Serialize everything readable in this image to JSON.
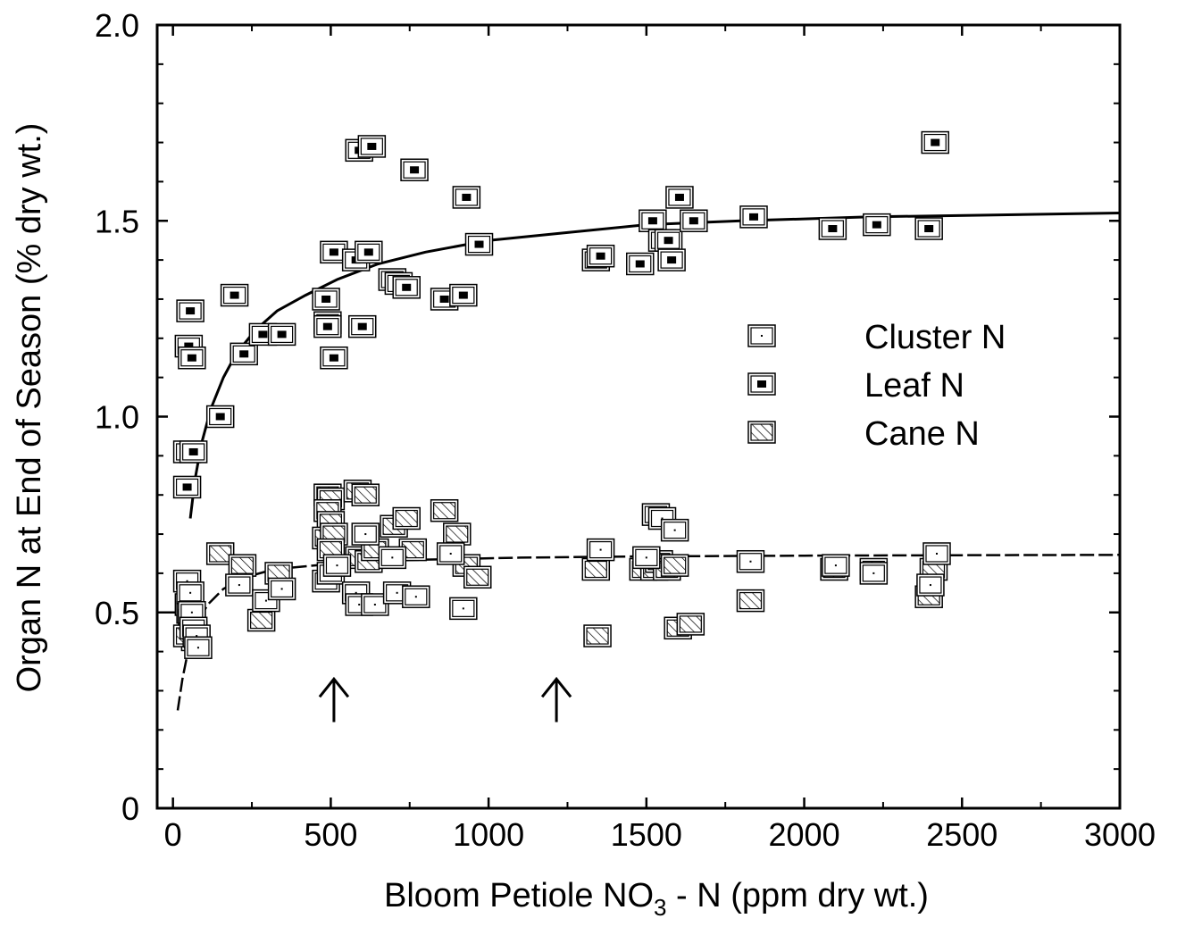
{
  "chart_data": {
    "type": "scatter",
    "title": "",
    "xlabel": "Bloom Petiole NO",
    "xlabel_sub": "3",
    "xlabel_rest": " - N (ppm dry wt.)",
    "ylabel": "Organ N at End of Season (% dry wt.)",
    "xlim": [
      -50,
      3000
    ],
    "ylim": [
      0,
      2.0
    ],
    "x_ticks": [
      0,
      500,
      1000,
      1500,
      2000,
      2500,
      3000
    ],
    "x_tick_labels": [
      "0",
      "500",
      "1000",
      "1500",
      "2000",
      "2500",
      "3000"
    ],
    "y_ticks": [
      0,
      0.5,
      1.0,
      1.5,
      2.0
    ],
    "y_tick_labels": [
      "0",
      "0.5",
      "1.0",
      "1.5",
      "2.0"
    ],
    "legend_position": "right-middle",
    "legend": [
      {
        "label": "Cluster N",
        "marker": "open-square-dot"
      },
      {
        "label": "Leaf N",
        "marker": "filled-center-square"
      },
      {
        "label": "Cane N",
        "marker": "hatched-square"
      }
    ],
    "series": [
      {
        "name": "Leaf N",
        "marker": "filled-center-square",
        "points": [
          [
            55,
            1.27
          ],
          [
            50,
            1.18
          ],
          [
            60,
            1.15
          ],
          [
            45,
            0.91
          ],
          [
            65,
            0.91
          ],
          [
            45,
            0.82
          ],
          [
            150,
            1.0
          ],
          [
            195,
            1.31
          ],
          [
            225,
            1.16
          ],
          [
            285,
            1.21
          ],
          [
            345,
            1.21
          ],
          [
            485,
            1.3
          ],
          [
            490,
            1.24
          ],
          [
            490,
            1.23
          ],
          [
            510,
            1.15
          ],
          [
            510,
            1.42
          ],
          [
            580,
            1.4
          ],
          [
            590,
            1.68
          ],
          [
            630,
            1.69
          ],
          [
            620,
            1.42
          ],
          [
            600,
            1.23
          ],
          [
            695,
            1.35
          ],
          [
            715,
            1.34
          ],
          [
            740,
            1.33
          ],
          [
            765,
            1.63
          ],
          [
            860,
            1.3
          ],
          [
            920,
            1.31
          ],
          [
            930,
            1.56
          ],
          [
            970,
            1.44
          ],
          [
            1340,
            1.4
          ],
          [
            1355,
            1.41
          ],
          [
            1480,
            1.39
          ],
          [
            1520,
            1.5
          ],
          [
            1550,
            1.45
          ],
          [
            1570,
            1.45
          ],
          [
            1580,
            1.4
          ],
          [
            1605,
            1.56
          ],
          [
            1650,
            1.5
          ],
          [
            1840,
            1.51
          ],
          [
            2090,
            1.48
          ],
          [
            2230,
            1.49
          ],
          [
            2395,
            1.48
          ],
          [
            2415,
            1.7
          ]
        ]
      },
      {
        "name": "Cluster N",
        "marker": "open-square-dot",
        "points": [
          [
            45,
            0.58
          ],
          [
            55,
            0.55
          ],
          [
            60,
            0.5
          ],
          [
            65,
            0.46
          ],
          [
            75,
            0.44
          ],
          [
            80,
            0.41
          ],
          [
            210,
            0.57
          ],
          [
            295,
            0.53
          ],
          [
            345,
            0.56
          ],
          [
            485,
            0.58
          ],
          [
            500,
            0.6
          ],
          [
            520,
            0.62
          ],
          [
            580,
            0.55
          ],
          [
            590,
            0.52
          ],
          [
            610,
            0.7
          ],
          [
            640,
            0.52
          ],
          [
            695,
            0.64
          ],
          [
            710,
            0.55
          ],
          [
            770,
            0.54
          ],
          [
            880,
            0.65
          ],
          [
            920,
            0.51
          ],
          [
            1355,
            0.66
          ],
          [
            1500,
            0.64
          ],
          [
            1530,
            0.75
          ],
          [
            1550,
            0.74
          ],
          [
            1590,
            0.71
          ],
          [
            1830,
            0.63
          ],
          [
            2100,
            0.62
          ],
          [
            2220,
            0.6
          ],
          [
            2400,
            0.57
          ],
          [
            2420,
            0.65
          ]
        ]
      },
      {
        "name": "Cane N",
        "marker": "hatched-square",
        "points": [
          [
            50,
            0.52
          ],
          [
            55,
            0.5
          ],
          [
            60,
            0.48
          ],
          [
            65,
            0.45
          ],
          [
            70,
            0.43
          ],
          [
            45,
            0.44
          ],
          [
            150,
            0.65
          ],
          [
            220,
            0.62
          ],
          [
            280,
            0.48
          ],
          [
            335,
            0.6
          ],
          [
            490,
            0.8
          ],
          [
            500,
            0.79
          ],
          [
            490,
            0.76
          ],
          [
            500,
            0.73
          ],
          [
            485,
            0.69
          ],
          [
            510,
            0.7
          ],
          [
            500,
            0.66
          ],
          [
            585,
            0.81
          ],
          [
            610,
            0.8
          ],
          [
            590,
            0.64
          ],
          [
            620,
            0.63
          ],
          [
            640,
            0.66
          ],
          [
            700,
            0.72
          ],
          [
            740,
            0.74
          ],
          [
            760,
            0.66
          ],
          [
            860,
            0.76
          ],
          [
            900,
            0.7
          ],
          [
            930,
            0.62
          ],
          [
            965,
            0.59
          ],
          [
            1340,
            0.61
          ],
          [
            1345,
            0.44
          ],
          [
            1490,
            0.61
          ],
          [
            1525,
            0.61
          ],
          [
            1540,
            0.63
          ],
          [
            1565,
            0.61
          ],
          [
            1590,
            0.62
          ],
          [
            1600,
            0.46
          ],
          [
            1640,
            0.47
          ],
          [
            1830,
            0.53
          ],
          [
            2095,
            0.61
          ],
          [
            2220,
            0.61
          ],
          [
            2395,
            0.54
          ],
          [
            2410,
            0.61
          ]
        ]
      }
    ],
    "fit_lines": [
      {
        "name": "Leaf N fit",
        "style": "solid",
        "points": [
          [
            55,
            0.74
          ],
          [
            70,
            0.84
          ],
          [
            90,
            0.93
          ],
          [
            120,
            1.02
          ],
          [
            160,
            1.1
          ],
          [
            200,
            1.16
          ],
          [
            260,
            1.22
          ],
          [
            330,
            1.27
          ],
          [
            420,
            1.31
          ],
          [
            520,
            1.35
          ],
          [
            650,
            1.39
          ],
          [
            800,
            1.42
          ],
          [
            1000,
            1.45
          ],
          [
            1250,
            1.47
          ],
          [
            1500,
            1.49
          ],
          [
            1800,
            1.5
          ],
          [
            2200,
            1.51
          ],
          [
            2600,
            1.515
          ],
          [
            3000,
            1.52
          ]
        ]
      },
      {
        "name": "Cluster/Cane N fit",
        "style": "dashed",
        "points": [
          [
            15,
            0.25
          ],
          [
            30,
            0.33
          ],
          [
            50,
            0.41
          ],
          [
            75,
            0.47
          ],
          [
            110,
            0.52
          ],
          [
            160,
            0.56
          ],
          [
            230,
            0.59
          ],
          [
            320,
            0.61
          ],
          [
            450,
            0.62
          ],
          [
            600,
            0.63
          ],
          [
            800,
            0.635
          ],
          [
            1100,
            0.64
          ],
          [
            1500,
            0.643
          ],
          [
            2000,
            0.645
          ],
          [
            2500,
            0.646
          ],
          [
            3000,
            0.647
          ]
        ]
      },
      {
        "name": "Intercept line",
        "style": "solid-thin",
        "points": [
          [
            -50,
            0.5
          ],
          [
            40,
            0.5
          ]
        ]
      }
    ],
    "annotations": [
      {
        "type": "arrow-up",
        "x": 510,
        "y_from": 0.22,
        "y_to": 0.33
      },
      {
        "type": "arrow-up",
        "x": 1215,
        "y_from": 0.22,
        "y_to": 0.33
      }
    ]
  }
}
